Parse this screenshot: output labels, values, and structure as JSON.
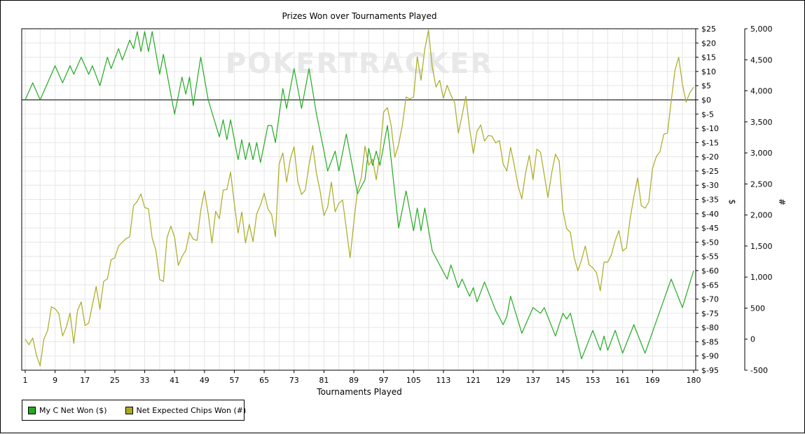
{
  "watermark": "POKERTRACKER",
  "colors": {
    "series1": "#22aa22",
    "series2": "#aaaa22",
    "grid": "#e6e6e6",
    "zero_line": "#000000"
  },
  "chart_data": {
    "type": "line",
    "title": "Prizes Won over Tournaments Played",
    "xlabel": "Tournaments Played",
    "ylabel_left": "$",
    "ylabel_right": "#",
    "xlim": [
      1,
      180
    ],
    "x_ticks": [
      1,
      9,
      17,
      25,
      33,
      41,
      49,
      57,
      65,
      73,
      81,
      89,
      97,
      105,
      113,
      121,
      129,
      137,
      145,
      153,
      161,
      169,
      180
    ],
    "ylim_left": [
      -95,
      25
    ],
    "y_ticks_left": [
      "$25",
      "$20",
      "$15",
      "$10",
      "$5",
      "$0",
      "$-5",
      "$-10",
      "$-15",
      "$-20",
      "$-25",
      "$-30",
      "$-35",
      "$-40",
      "$-45",
      "$-50",
      "$-55",
      "$-60",
      "$-65",
      "$-70",
      "$-75",
      "$-80",
      "$-85",
      "$-90",
      "$-95"
    ],
    "ylim_right": [
      -500,
      5000
    ],
    "y_ticks_right": [
      "5,000",
      "4,500",
      "4,000",
      "3,500",
      "3,000",
      "2,500",
      "2,000",
      "1,500",
      "1,000",
      "500",
      "0",
      "-500"
    ],
    "grid": true,
    "legend_position": "bottom-left",
    "series": [
      {
        "name": "My C Net Won ($)",
        "axis": "left",
        "points": [
          [
            1,
            0
          ],
          [
            3,
            6
          ],
          [
            5,
            0
          ],
          [
            7,
            6
          ],
          [
            9,
            12
          ],
          [
            11,
            6
          ],
          [
            13,
            12
          ],
          [
            14,
            9
          ],
          [
            16,
            15
          ],
          [
            18,
            9
          ],
          [
            19,
            12
          ],
          [
            21,
            5
          ],
          [
            23,
            15
          ],
          [
            24,
            11
          ],
          [
            26,
            18
          ],
          [
            27,
            14
          ],
          [
            29,
            21
          ],
          [
            30,
            18
          ],
          [
            31,
            24
          ],
          [
            32,
            17
          ],
          [
            33,
            24
          ],
          [
            34,
            17
          ],
          [
            35,
            24
          ],
          [
            37,
            9
          ],
          [
            38,
            16
          ],
          [
            41,
            -5
          ],
          [
            43,
            8
          ],
          [
            44,
            2
          ],
          [
            45,
            8
          ],
          [
            46,
            -2
          ],
          [
            48,
            15
          ],
          [
            50,
            0
          ],
          [
            53,
            -13
          ],
          [
            54,
            -7
          ],
          [
            55,
            -14
          ],
          [
            56,
            -7
          ],
          [
            58,
            -21
          ],
          [
            59,
            -14
          ],
          [
            60,
            -21
          ],
          [
            61,
            -15
          ],
          [
            62,
            -21
          ],
          [
            63,
            -15
          ],
          [
            64,
            -22
          ],
          [
            66,
            -9
          ],
          [
            67,
            -9
          ],
          [
            68,
            -15
          ],
          [
            70,
            4
          ],
          [
            71,
            -3
          ],
          [
            73,
            11
          ],
          [
            75,
            -3
          ],
          [
            77,
            11
          ],
          [
            79,
            -5
          ],
          [
            81,
            -18
          ],
          [
            82,
            -25
          ],
          [
            84,
            -18
          ],
          [
            85,
            -25
          ],
          [
            87,
            -12
          ],
          [
            90,
            -33
          ],
          [
            92,
            -28
          ],
          [
            93,
            -17
          ],
          [
            94,
            -23
          ],
          [
            95,
            -18
          ],
          [
            96,
            -23
          ],
          [
            98,
            -9
          ],
          [
            101,
            -45
          ],
          [
            103,
            -32
          ],
          [
            105,
            -46
          ],
          [
            106,
            -38
          ],
          [
            107,
            -46
          ],
          [
            108,
            -38
          ],
          [
            110,
            -53
          ],
          [
            114,
            -63
          ],
          [
            115,
            -58
          ],
          [
            117,
            -66
          ],
          [
            118,
            -63
          ],
          [
            120,
            -69
          ],
          [
            121,
            -66
          ],
          [
            122,
            -71
          ],
          [
            124,
            -64
          ],
          [
            127,
            -74
          ],
          [
            129,
            -79
          ],
          [
            130,
            -76
          ],
          [
            131,
            -69
          ],
          [
            134,
            -82
          ],
          [
            137,
            -73
          ],
          [
            139,
            -75
          ],
          [
            140,
            -73
          ],
          [
            143,
            -83
          ],
          [
            145,
            -75
          ],
          [
            146,
            -77
          ],
          [
            147,
            -75
          ],
          [
            150,
            -91
          ],
          [
            153,
            -81
          ],
          [
            155,
            -88
          ],
          [
            156,
            -83
          ],
          [
            157,
            -88
          ],
          [
            159,
            -81
          ],
          [
            161,
            -89
          ],
          [
            164,
            -79
          ],
          [
            167,
            -89
          ],
          [
            174,
            -63
          ],
          [
            177,
            -73
          ],
          [
            180,
            -60
          ]
        ]
      },
      {
        "name": "Net Expected Chips Won (#)",
        "axis": "right",
        "points": [
          [
            1,
            0
          ],
          [
            2,
            -90
          ],
          [
            3,
            20
          ],
          [
            4,
            -260
          ],
          [
            5,
            -430
          ],
          [
            6,
            0
          ],
          [
            7,
            140
          ],
          [
            8,
            520
          ],
          [
            9,
            490
          ],
          [
            10,
            410
          ],
          [
            11,
            50
          ],
          [
            12,
            190
          ],
          [
            13,
            420
          ],
          [
            14,
            -70
          ],
          [
            15,
            460
          ],
          [
            16,
            600
          ],
          [
            17,
            220
          ],
          [
            18,
            260
          ],
          [
            20,
            850
          ],
          [
            21,
            480
          ],
          [
            22,
            930
          ],
          [
            23,
            970
          ],
          [
            24,
            1280
          ],
          [
            25,
            1310
          ],
          [
            26,
            1500
          ],
          [
            27,
            1560
          ],
          [
            28,
            1620
          ],
          [
            29,
            1650
          ],
          [
            30,
            2150
          ],
          [
            31,
            2220
          ],
          [
            32,
            2340
          ],
          [
            33,
            2120
          ],
          [
            34,
            2100
          ],
          [
            35,
            1630
          ],
          [
            36,
            1430
          ],
          [
            37,
            960
          ],
          [
            38,
            930
          ],
          [
            39,
            1640
          ],
          [
            40,
            1820
          ],
          [
            41,
            1640
          ],
          [
            42,
            1190
          ],
          [
            43,
            1330
          ],
          [
            44,
            1430
          ],
          [
            45,
            1720
          ],
          [
            46,
            1610
          ],
          [
            47,
            1590
          ],
          [
            48,
            2070
          ],
          [
            49,
            2390
          ],
          [
            50,
            2020
          ],
          [
            51,
            1550
          ],
          [
            52,
            2060
          ],
          [
            53,
            1940
          ],
          [
            54,
            2400
          ],
          [
            55,
            2410
          ],
          [
            56,
            2690
          ],
          [
            57,
            2180
          ],
          [
            58,
            1710
          ],
          [
            59,
            2050
          ],
          [
            60,
            1550
          ],
          [
            61,
            1850
          ],
          [
            62,
            1570
          ],
          [
            63,
            2020
          ],
          [
            64,
            2160
          ],
          [
            65,
            2350
          ],
          [
            66,
            2100
          ],
          [
            67,
            2000
          ],
          [
            68,
            1650
          ],
          [
            69,
            2820
          ],
          [
            70,
            3000
          ],
          [
            71,
            2530
          ],
          [
            72,
            2900
          ],
          [
            73,
            3100
          ],
          [
            74,
            2540
          ],
          [
            75,
            2330
          ],
          [
            76,
            2400
          ],
          [
            77,
            2810
          ],
          [
            78,
            3120
          ],
          [
            79,
            2670
          ],
          [
            80,
            2380
          ],
          [
            81,
            1990
          ],
          [
            82,
            2130
          ],
          [
            83,
            2530
          ],
          [
            84,
            2050
          ],
          [
            85,
            2190
          ],
          [
            86,
            2240
          ],
          [
            87,
            1780
          ],
          [
            88,
            1310
          ],
          [
            89,
            1880
          ],
          [
            90,
            2400
          ],
          [
            91,
            2600
          ],
          [
            92,
            3110
          ],
          [
            93,
            2800
          ],
          [
            94,
            2900
          ],
          [
            95,
            2570
          ],
          [
            96,
            2990
          ],
          [
            97,
            3660
          ],
          [
            98,
            3730
          ],
          [
            99,
            3440
          ],
          [
            100,
            2930
          ],
          [
            101,
            3140
          ],
          [
            102,
            3450
          ],
          [
            103,
            3900
          ],
          [
            104,
            3870
          ],
          [
            105,
            3900
          ],
          [
            106,
            4550
          ],
          [
            107,
            4170
          ],
          [
            108,
            4670
          ],
          [
            109,
            4980
          ],
          [
            110,
            4390
          ],
          [
            111,
            4060
          ],
          [
            112,
            4170
          ],
          [
            113,
            3880
          ],
          [
            114,
            4090
          ],
          [
            115,
            3930
          ],
          [
            116,
            3810
          ],
          [
            117,
            3320
          ],
          [
            118,
            3610
          ],
          [
            119,
            3910
          ],
          [
            120,
            3400
          ],
          [
            121,
            2990
          ],
          [
            122,
            3350
          ],
          [
            123,
            3450
          ],
          [
            124,
            3190
          ],
          [
            125,
            3280
          ],
          [
            126,
            3270
          ],
          [
            127,
            3160
          ],
          [
            128,
            3200
          ],
          [
            129,
            2820
          ],
          [
            130,
            2710
          ],
          [
            131,
            3090
          ],
          [
            132,
            2790
          ],
          [
            133,
            2470
          ],
          [
            134,
            2260
          ],
          [
            135,
            2680
          ],
          [
            136,
            2960
          ],
          [
            137,
            2570
          ],
          [
            138,
            3060
          ],
          [
            139,
            3010
          ],
          [
            140,
            2650
          ],
          [
            141,
            2280
          ],
          [
            142,
            2680
          ],
          [
            143,
            2980
          ],
          [
            144,
            2870
          ],
          [
            145,
            2070
          ],
          [
            146,
            1780
          ],
          [
            147,
            1720
          ],
          [
            148,
            1320
          ],
          [
            149,
            1100
          ],
          [
            150,
            1280
          ],
          [
            151,
            1500
          ],
          [
            152,
            1200
          ],
          [
            153,
            1150
          ],
          [
            154,
            1070
          ],
          [
            155,
            780
          ],
          [
            156,
            1240
          ],
          [
            157,
            1240
          ],
          [
            158,
            1360
          ],
          [
            159,
            1590
          ],
          [
            160,
            1750
          ],
          [
            161,
            1420
          ],
          [
            162,
            1470
          ],
          [
            163,
            1940
          ],
          [
            164,
            2290
          ],
          [
            165,
            2600
          ],
          [
            166,
            2150
          ],
          [
            167,
            2110
          ],
          [
            168,
            2210
          ],
          [
            169,
            2750
          ],
          [
            170,
            2940
          ],
          [
            171,
            3020
          ],
          [
            172,
            3300
          ],
          [
            173,
            3320
          ],
          [
            174,
            3830
          ],
          [
            175,
            4330
          ],
          [
            176,
            4540
          ],
          [
            177,
            4110
          ],
          [
            178,
            3820
          ],
          [
            179,
            3970
          ],
          [
            180,
            4060
          ]
        ]
      }
    ]
  }
}
